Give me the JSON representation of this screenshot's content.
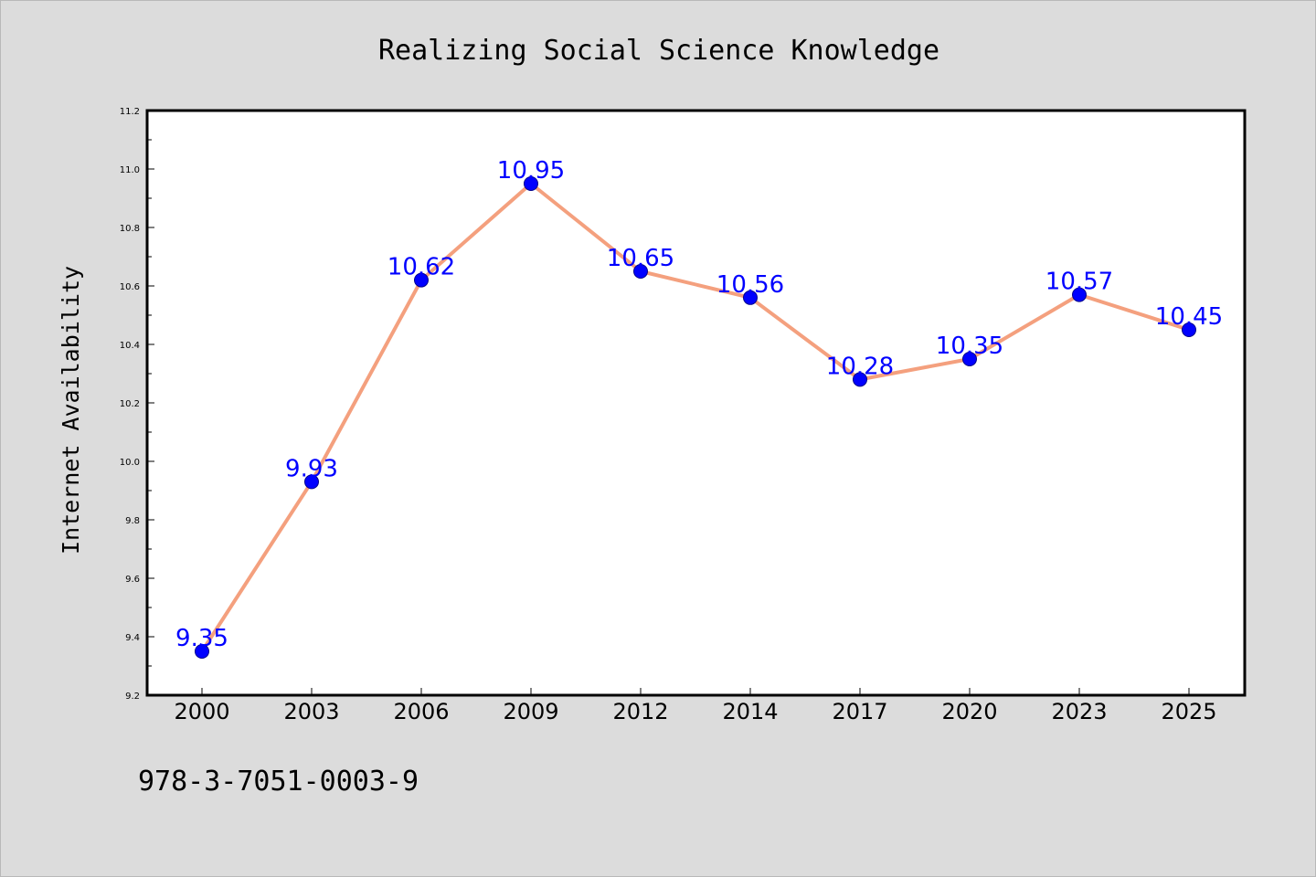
{
  "chart_data": {
    "type": "line",
    "title": "Realizing Social Science Knowledge",
    "xlabel": "",
    "ylabel": "Internet Availability",
    "categories": [
      "2000",
      "2003",
      "2006",
      "2009",
      "2012",
      "2014",
      "2017",
      "2020",
      "2023",
      "2025"
    ],
    "series": [
      {
        "values": [
          9.35,
          9.93,
          10.62,
          10.95,
          10.65,
          10.56,
          10.28,
          10.35,
          10.57,
          10.45
        ],
        "labels": [
          "9.35",
          "9.93",
          "10.62",
          "10.95",
          "10.65",
          "10.56",
          "10.28",
          "10.35",
          "10.57",
          "10.45"
        ]
      }
    ],
    "ylim": [
      9.2,
      11.2
    ],
    "yticks": [
      "9.2",
      "9.4",
      "9.6",
      "9.8",
      "10.0",
      "10.2",
      "10.4",
      "10.6",
      "10.8",
      "11.0",
      "11.2"
    ],
    "grid": false,
    "colors": {
      "line": "#f4a07e",
      "marker": "#0000ff",
      "marker_edge": "#00008b",
      "data_label": "#0000ff",
      "background": "#dcdcdc",
      "plot_background": "#ffffff"
    }
  },
  "footer": {
    "isbn": "978-3-7051-0003-9"
  }
}
